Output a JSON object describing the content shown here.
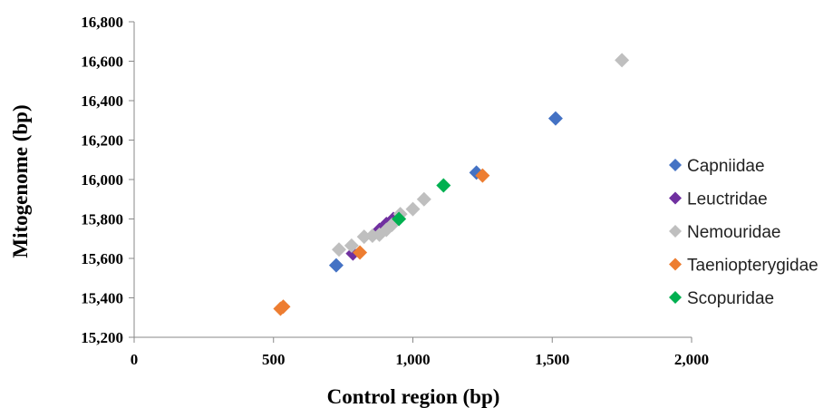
{
  "chart_data": {
    "type": "scatter",
    "xlabel": "Control region (bp)",
    "ylabel": "Mitogenome (bp)",
    "xlim": [
      0,
      2000
    ],
    "ylim": [
      15200,
      16800
    ],
    "xticks": [
      0,
      500,
      1000,
      1500,
      2000
    ],
    "yticks": [
      15200,
      15400,
      15600,
      15800,
      16000,
      16200,
      16400,
      16600,
      16800
    ],
    "xtick_labels": [
      "0",
      "500",
      "1,000",
      "1,500",
      "2,000"
    ],
    "ytick_labels": [
      "15,200",
      "15,400",
      "15,600",
      "15,800",
      "16,000",
      "16,200",
      "16,400",
      "16,600",
      "16,800"
    ],
    "grid": false,
    "legend_position": "right",
    "series": [
      {
        "name": "Capniidae",
        "color": "#4472C4",
        "points": [
          [
            725,
            15565
          ],
          [
            1228,
            16035
          ],
          [
            1512,
            16310
          ]
        ]
      },
      {
        "name": "Leuctridae",
        "color": "#7030A0",
        "points": [
          [
            785,
            15625
          ],
          [
            880,
            15745
          ],
          [
            905,
            15775
          ],
          [
            930,
            15800
          ]
        ]
      },
      {
        "name": "Nemouridae",
        "color": "#BFBFBF",
        "points": [
          [
            735,
            15645
          ],
          [
            780,
            15665
          ],
          [
            825,
            15710
          ],
          [
            855,
            15715
          ],
          [
            880,
            15720
          ],
          [
            905,
            15745
          ],
          [
            925,
            15770
          ],
          [
            955,
            15825
          ],
          [
            1000,
            15850
          ],
          [
            1040,
            15900
          ],
          [
            1750,
            16605
          ]
        ]
      },
      {
        "name": "Taeniopterygidae",
        "color": "#ED7D31",
        "points": [
          [
            525,
            15345
          ],
          [
            535,
            15355
          ],
          [
            810,
            15630
          ],
          [
            1250,
            16020
          ]
        ]
      },
      {
        "name": "Scopuridae",
        "color": "#00B050",
        "points": [
          [
            950,
            15800
          ],
          [
            1110,
            15970
          ]
        ]
      }
    ]
  }
}
